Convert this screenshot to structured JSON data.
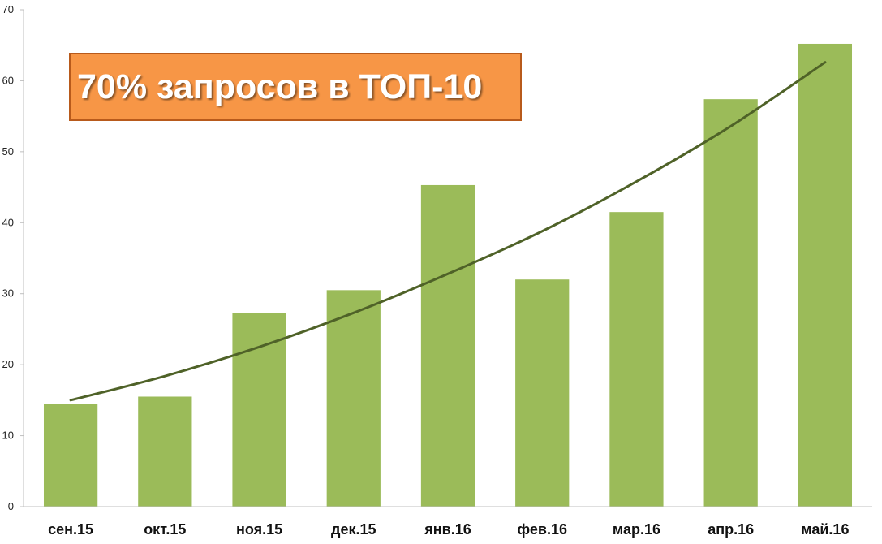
{
  "chart_data": {
    "type": "bar",
    "categories": [
      "сен.15",
      "окт.15",
      "ноя.15",
      "дек.15",
      "янв.16",
      "фев.16",
      "мар.16",
      "апр.16",
      "май.16"
    ],
    "values": [
      14.5,
      15.5,
      27.3,
      30.5,
      45.3,
      32.0,
      41.5,
      57.4,
      65.2
    ],
    "trendline": {
      "type": "polynomial",
      "values": [
        15.0,
        18.4,
        22.5,
        27.3,
        32.8,
        38.8,
        45.8,
        53.6,
        62.6
      ]
    },
    "title": "70% запросов в ТОП-10",
    "ylim": [
      0,
      70
    ],
    "yticks": [
      "0",
      "10",
      "20",
      "30",
      "40",
      "50",
      "60",
      "70"
    ],
    "grid": false,
    "colors": {
      "bar": "#9bbb59",
      "trend": "#4f6228",
      "title_fill": "#f79646",
      "title_border": "#b85a1b"
    }
  }
}
